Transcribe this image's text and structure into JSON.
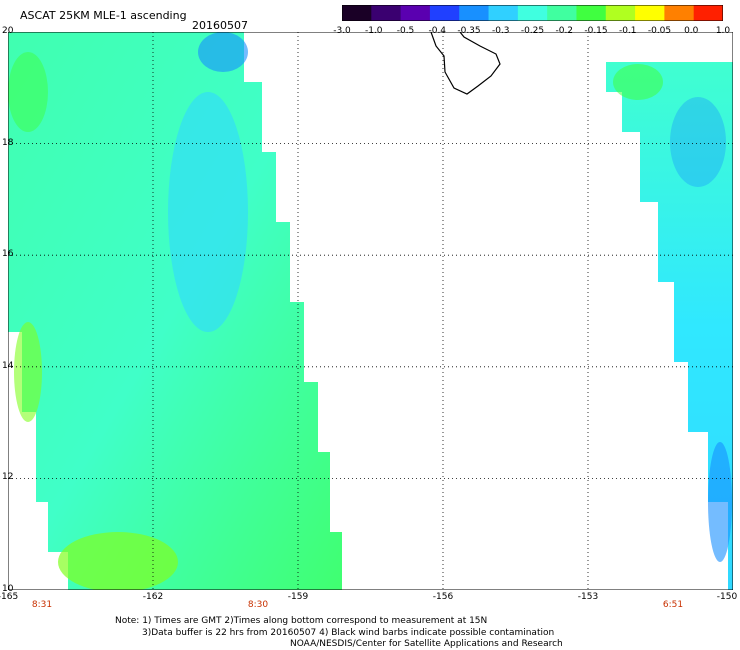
{
  "header": {
    "title": "ASCAT 25KM MLE-1 ascending",
    "date": "20160507"
  },
  "colorbar": {
    "labels": [
      "-3.0",
      "-1.0",
      "-0.5",
      "-0.4",
      "-0.35",
      "-0.3",
      "-0.25",
      "-0.2",
      "-0.15",
      "-0.1",
      "-0.05",
      "0.0",
      "1.0"
    ],
    "colors": [
      "#1a0026",
      "#3a0070",
      "#5a00b0",
      "#2040ff",
      "#1890ff",
      "#30d0ff",
      "#40ffe0",
      "#40ffa0",
      "#40ff40",
      "#b0ff20",
      "#ffff00",
      "#ff8000",
      "#ff2000"
    ]
  },
  "map": {
    "lat_labels": [
      "20",
      "18",
      "16",
      "14",
      "12",
      "10"
    ],
    "lon_labels": [
      "-165",
      "-162",
      "-159",
      "-156",
      "-153",
      "-150"
    ],
    "time_labels": [
      "8:31",
      "8:30",
      "6:51"
    ],
    "swath_colors": {
      "left_base": "#40ffb0",
      "left_blue": "#30d8ff",
      "left_green": "#40ff40",
      "right_base": "#30e8ff",
      "right_blue": "#1890ff",
      "coast": "#000000"
    }
  },
  "footer": {
    "line1": "Note: 1) Times are GMT 2)Times along bottom correspond to measurement at 15N",
    "line2": "3)Data buffer is 22 hrs from 20160507 4) Black wind barbs indicate possible contamination",
    "line3": "NOAA/NESDIS/Center for Satellite Applications and Research"
  }
}
